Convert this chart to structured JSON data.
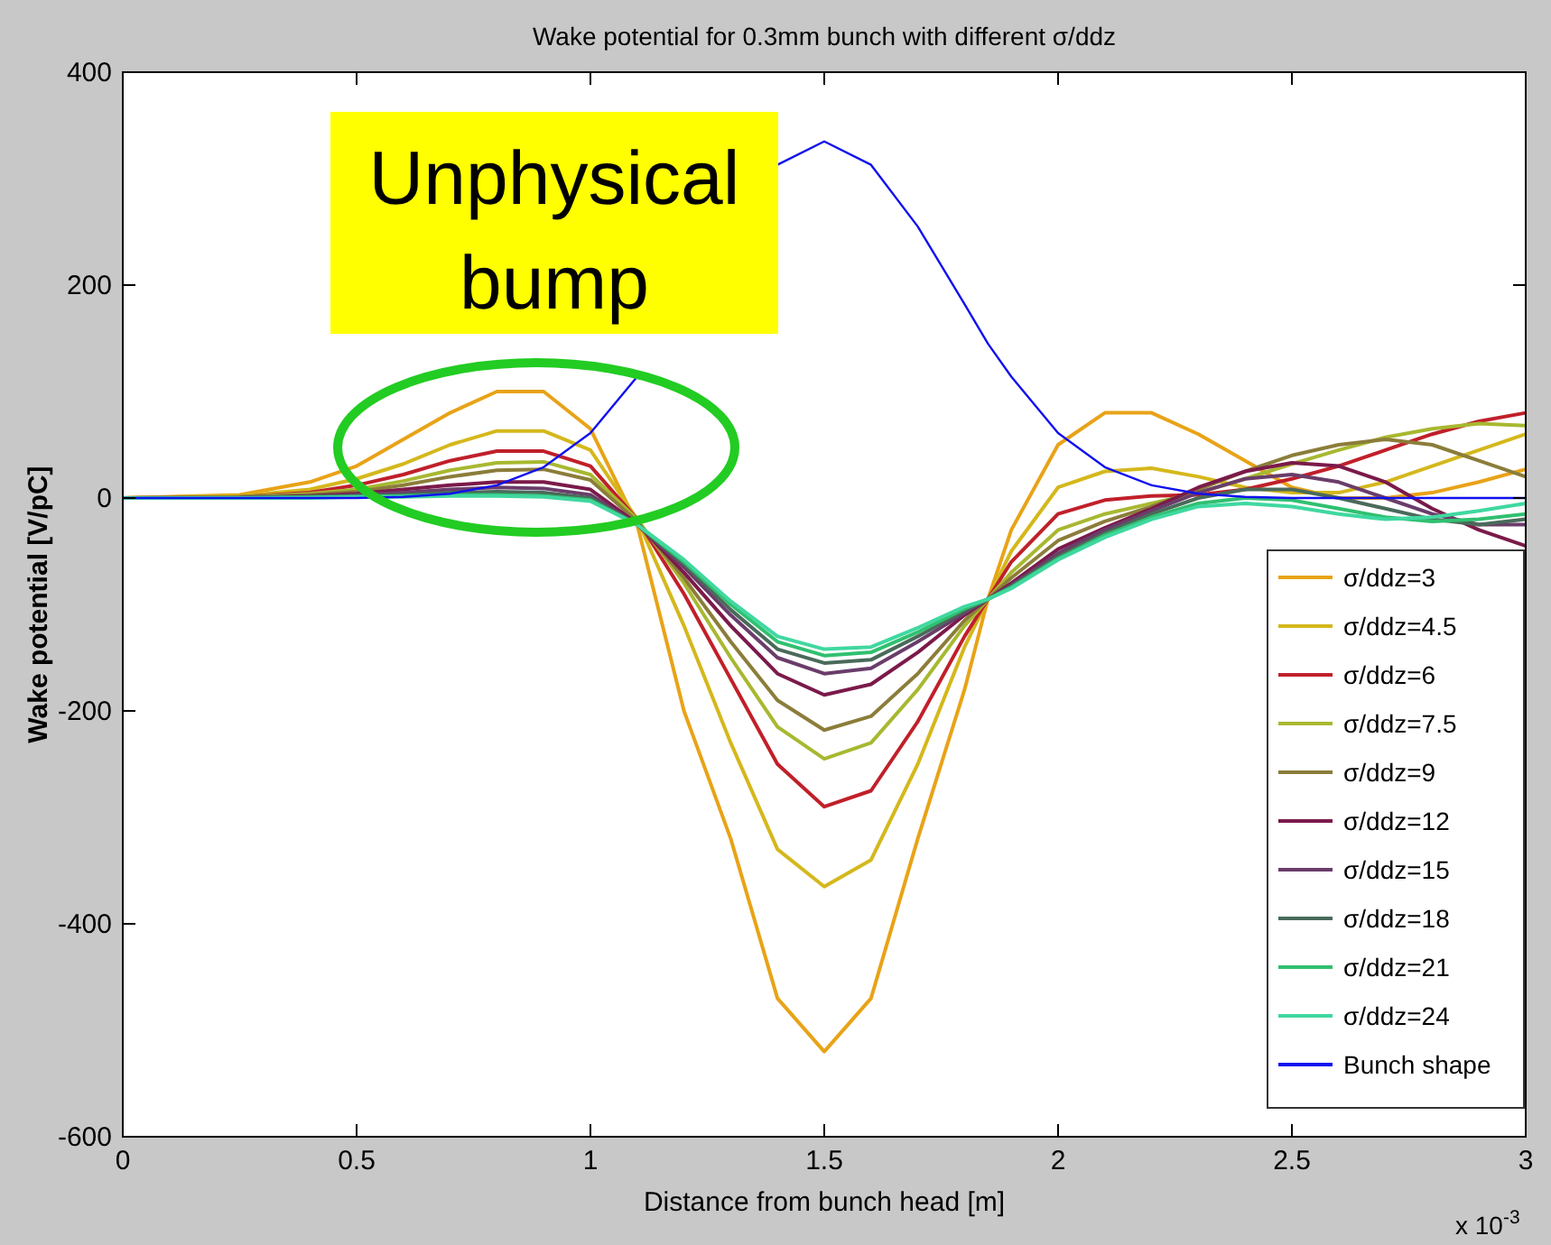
{
  "chart_data": {
    "type": "line",
    "title": "Wake potential for 0.3mm bunch with different σ/ddz",
    "xlabel": "Distance from bunch head [m]",
    "ylabel": "Wake potential [V/pC]",
    "annotations": [
      "Unphysical bump",
      "x 10$^{-3}$"
    ],
    "x": [
      0,
      0.25,
      0.4,
      0.5,
      0.6,
      0.7,
      0.8,
      0.9,
      1.0,
      1.1,
      1.2,
      1.3,
      1.4,
      1.5,
      1.6,
      1.7,
      1.8,
      1.85,
      1.9,
      2.0,
      2.1,
      2.2,
      2.3,
      2.4,
      2.5,
      2.6,
      2.7,
      2.8,
      2.9,
      3.0
    ],
    "xlim": [
      0,
      3
    ],
    "xticks": [
      0,
      0.5,
      1,
      1.5,
      2,
      2.5,
      3
    ],
    "ylim": [
      -600,
      400
    ],
    "yticks": [
      -600,
      -400,
      -200,
      0,
      200,
      400
    ],
    "grid": false,
    "legend": "bottom right",
    "marker": "none",
    "line_style": "solid",
    "series": [
      {
        "name": "σ/ddz=3",
        "color": "#e8a317",
        "values": [
          0,
          3,
          15,
          30,
          55,
          80,
          100,
          100,
          65,
          -25,
          -200,
          -320,
          -470,
          -520,
          -470,
          -320,
          -180,
          -95,
          -30,
          50,
          80,
          80,
          60,
          35,
          10,
          0,
          0,
          5,
          15,
          27
        ]
      },
      {
        "name": "σ/ddz=4.5",
        "color": "#d4b81c",
        "values": [
          0,
          2,
          8,
          18,
          32,
          50,
          63,
          63,
          45,
          -20,
          -120,
          -230,
          -330,
          -365,
          -340,
          -250,
          -140,
          -95,
          -50,
          10,
          25,
          28,
          20,
          10,
          5,
          5,
          15,
          30,
          45,
          60
        ]
      },
      {
        "name": "σ/ddz=6",
        "color": "#c0202a",
        "values": [
          0,
          1,
          5,
          12,
          22,
          35,
          44,
          44,
          30,
          -20,
          -90,
          -170,
          -250,
          -290,
          -275,
          -210,
          -130,
          -95,
          -60,
          -15,
          -2,
          2,
          3,
          8,
          18,
          30,
          45,
          60,
          72,
          80
        ]
      },
      {
        "name": "σ/ddz=7.5",
        "color": "#a8b830",
        "values": [
          0,
          1,
          4,
          8,
          16,
          26,
          33,
          34,
          22,
          -20,
          -80,
          -150,
          -215,
          -245,
          -230,
          -180,
          -120,
          -95,
          -70,
          -30,
          -15,
          -5,
          5,
          18,
          32,
          45,
          57,
          65,
          70,
          68
        ]
      },
      {
        "name": "σ/ddz=9",
        "color": "#8b7d3a",
        "values": [
          0,
          1,
          3,
          6,
          12,
          20,
          26,
          27,
          17,
          -22,
          -75,
          -135,
          -190,
          -218,
          -205,
          -165,
          -115,
          -95,
          -75,
          -40,
          -22,
          -8,
          8,
          25,
          40,
          50,
          55,
          50,
          35,
          20
        ]
      },
      {
        "name": "σ/ddz=12",
        "color": "#7b1a4a",
        "values": [
          0,
          0,
          2,
          4,
          8,
          12,
          15,
          15,
          8,
          -24,
          -70,
          -120,
          -165,
          -185,
          -175,
          -145,
          -110,
          -95,
          -80,
          -48,
          -28,
          -10,
          10,
          25,
          33,
          30,
          15,
          -10,
          -30,
          -45
        ]
      },
      {
        "name": "σ/ddz=15",
        "color": "#6a3d6a",
        "values": [
          0,
          0,
          1,
          3,
          5,
          8,
          10,
          9,
          3,
          -25,
          -65,
          -110,
          -150,
          -165,
          -160,
          -135,
          -108,
          -95,
          -82,
          -52,
          -30,
          -12,
          5,
          18,
          22,
          15,
          0,
          -15,
          -25,
          -25
        ]
      },
      {
        "name": "σ/ddz=18",
        "color": "#4a6a5a",
        "values": [
          0,
          0,
          1,
          2,
          3,
          5,
          6,
          5,
          0,
          -25,
          -62,
          -105,
          -142,
          -155,
          -152,
          -130,
          -106,
          -95,
          -83,
          -55,
          -33,
          -15,
          0,
          8,
          8,
          0,
          -10,
          -20,
          -25,
          -20
        ]
      },
      {
        "name": "σ/ddz=21",
        "color": "#30c070",
        "values": [
          0,
          0,
          1,
          1,
          2,
          3,
          3,
          2,
          -2,
          -25,
          -60,
          -100,
          -135,
          -148,
          -145,
          -126,
          -104,
          -95,
          -84,
          -57,
          -35,
          -18,
          -5,
          0,
          -2,
          -10,
          -18,
          -22,
          -20,
          -15
        ]
      },
      {
        "name": "σ/ddz=24",
        "color": "#40d8a0",
        "values": [
          0,
          0,
          0,
          1,
          1,
          2,
          2,
          1,
          -3,
          -25,
          -58,
          -97,
          -130,
          -142,
          -140,
          -122,
          -102,
          -95,
          -85,
          -58,
          -37,
          -20,
          -8,
          -5,
          -8,
          -15,
          -20,
          -18,
          -12,
          -5
        ]
      },
      {
        "name": "Bunch shape",
        "color": "#1010f0",
        "values": [
          0,
          0,
          0,
          0,
          1,
          4,
          12,
          29,
          61,
          114,
          null,
          null,
          313,
          335,
          313,
          255,
          182,
          145,
          114,
          61,
          29,
          12,
          4,
          1,
          0,
          0,
          0,
          0,
          0,
          0
        ]
      }
    ]
  }
}
